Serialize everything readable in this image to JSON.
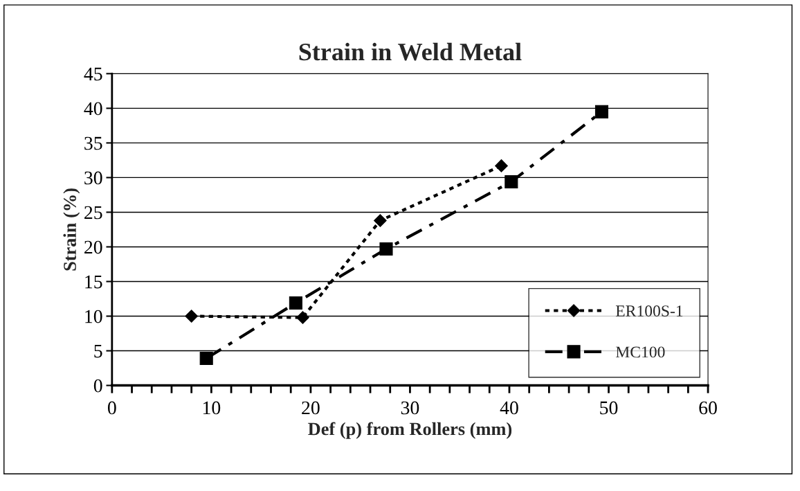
{
  "chart_data": {
    "type": "line",
    "title": "Strain in Weld Metal",
    "xlabel": "Def (p) from Rollers (mm)",
    "ylabel": "Strain (%)",
    "series": [
      {
        "name": "ER100S-1",
        "color": "#000000",
        "x": [
          8,
          19.2,
          27,
          39.2
        ],
        "values": [
          10,
          9.8,
          23.8,
          31.7
        ],
        "marker": "diamond",
        "line_style": "dotted"
      },
      {
        "name": "MC100",
        "color": "#000000",
        "x": [
          9.5,
          18.5,
          27.6,
          40.2,
          49.3
        ],
        "values": [
          3.9,
          11.9,
          19.7,
          29.4,
          39.5
        ],
        "marker": "square",
        "line_style": "dashdot"
      }
    ],
    "xlim": [
      0,
      60
    ],
    "ylim": [
      0,
      45
    ],
    "xticks": [
      0,
      {
        "value": 2,
        "label": null
      },
      {
        "value": 4,
        "label": null
      },
      {
        "value": 6,
        "label": null
      },
      {
        "value": 8,
        "label": null
      },
      10,
      {
        "value": 12,
        "label": null
      },
      {
        "value": 14,
        "label": null
      },
      {
        "value": 16,
        "label": null
      },
      {
        "value": 18,
        "label": null
      },
      20,
      {
        "value": 22,
        "label": null
      },
      {
        "value": 24,
        "label": null
      },
      {
        "value": 26,
        "label": null
      },
      {
        "value": 28,
        "label": null
      },
      30,
      {
        "value": 32,
        "label": null
      },
      {
        "value": 34,
        "label": null
      },
      {
        "value": 36,
        "label": null
      },
      {
        "value": 38,
        "label": null
      },
      40,
      {
        "value": 42,
        "label": null
      },
      {
        "value": 44,
        "label": null
      },
      {
        "value": 46,
        "label": null
      },
      {
        "value": 48,
        "label": null
      },
      50,
      {
        "value": 52,
        "label": null
      },
      {
        "value": 54,
        "label": null
      },
      {
        "value": 56,
        "label": null
      },
      {
        "value": 58,
        "label": null
      },
      60
    ],
    "yticks": [
      0,
      5,
      10,
      15,
      20,
      25,
      30,
      35,
      40,
      45
    ],
    "grid": "y",
    "legend": "bottom right"
  }
}
